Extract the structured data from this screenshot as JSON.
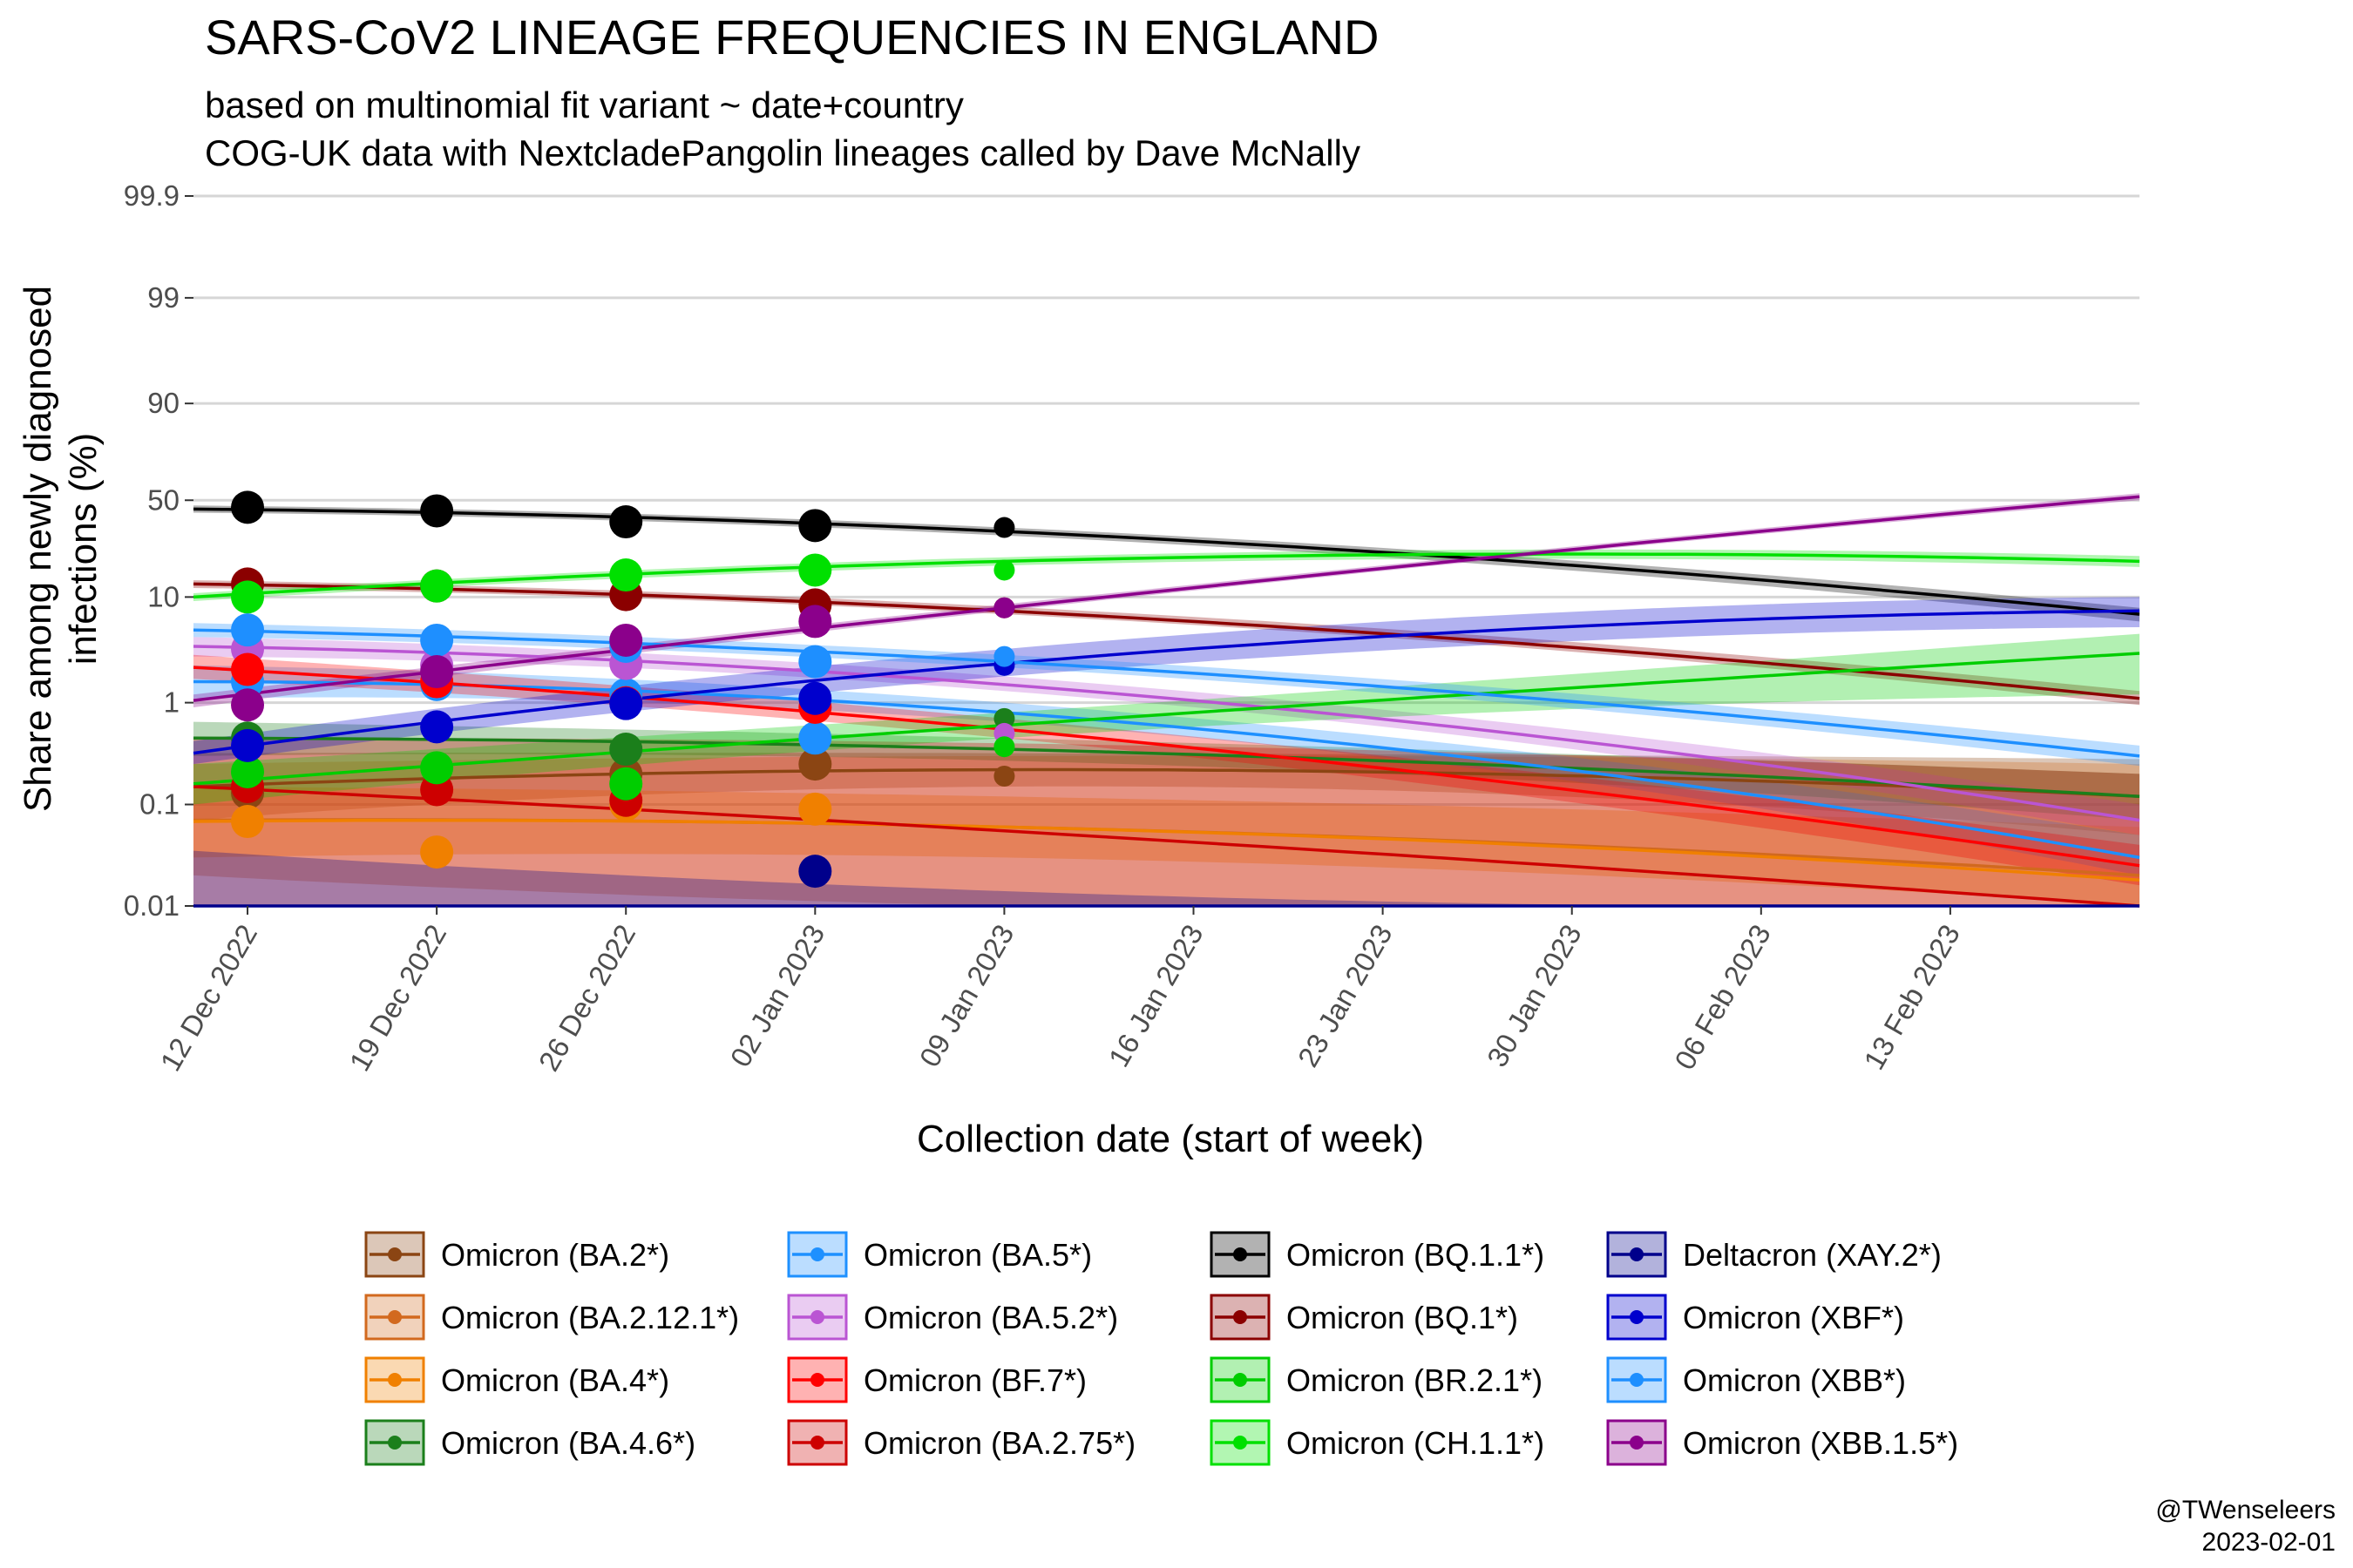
{
  "chart_data": {
    "type": "line",
    "title": "SARS-CoV2 LINEAGE FREQUENCIES IN ENGLAND",
    "subtitle_lines": [
      "based on multinomial fit variant ~ date+country",
      "COG-UK data with NextcladePangolin lineages called by Dave McNally"
    ],
    "xlabel": "Collection date (start of week)",
    "ylabel_lines": [
      "Share among newly diagnosed",
      "infections (%)"
    ],
    "y_scale": "logit",
    "y_ticks": [
      0.01,
      0.1,
      1,
      10,
      50,
      90,
      99,
      99.9
    ],
    "y_tick_labels": [
      "0.01",
      "0.1",
      "1",
      "10",
      "50",
      "90",
      "99",
      "99.9"
    ],
    "x_range": [
      "2022-12-10",
      "2023-02-20"
    ],
    "x_ticks": [
      "2022-12-12",
      "2022-12-19",
      "2022-12-26",
      "2023-01-02",
      "2023-01-09",
      "2023-01-16",
      "2023-01-23",
      "2023-01-30",
      "2023-02-06",
      "2023-02-13"
    ],
    "x_tick_labels": [
      "12 Dec 2022",
      "19 Dec 2022",
      "26 Dec 2022",
      "02 Jan 2023",
      "09 Jan 2023",
      "16 Jan 2023",
      "23 Jan 2023",
      "30 Jan 2023",
      "06 Feb 2023",
      "13 Feb 2023"
    ],
    "grid": true,
    "legend_position": "bottom",
    "series": [
      {
        "name": "Omicron (BA.2*)",
        "color": "#8B4513",
        "fit": [
          [
            "2022-12-10",
            0.15
          ],
          [
            "2023-01-09",
            0.22
          ],
          [
            "2023-02-20",
            0.12
          ]
        ],
        "band": [
          [
            "2022-12-10",
            0.07,
            0.32
          ],
          [
            "2023-01-09",
            0.15,
            0.32
          ],
          [
            "2023-02-20",
            0.05,
            0.28
          ]
        ],
        "points": [
          [
            "2022-12-12",
            0.13
          ],
          [
            "2022-12-26",
            0.2
          ],
          [
            "2023-01-02",
            0.25
          ],
          [
            "2023-01-09",
            0.19
          ]
        ]
      },
      {
        "name": "Omicron (BA.2.12.1*)",
        "color": "#D2691E",
        "fit": [
          [
            "2022-12-10",
            0.07
          ],
          [
            "2023-01-09",
            0.06
          ],
          [
            "2023-02-20",
            0.02
          ]
        ],
        "band": [
          [
            "2022-12-10",
            0.02,
            0.25
          ],
          [
            "2023-01-09",
            0.01,
            0.3
          ],
          [
            "2023-02-20",
            0.001,
            0.25
          ]
        ],
        "points": []
      },
      {
        "name": "Omicron (BA.4*)",
        "color": "#F08000",
        "fit": [
          [
            "2022-12-10",
            0.068
          ],
          [
            "2023-01-09",
            0.06
          ],
          [
            "2023-02-20",
            0.018
          ]
        ],
        "band": [
          [
            "2022-12-10",
            0.03,
            0.15
          ],
          [
            "2023-01-09",
            0.03,
            0.12
          ],
          [
            "2023-02-20",
            0.006,
            0.06
          ]
        ],
        "points": [
          [
            "2022-12-12",
            0.068
          ],
          [
            "2022-12-19",
            0.034
          ],
          [
            "2022-12-26",
            0.1
          ],
          [
            "2023-01-02",
            0.09
          ]
        ]
      },
      {
        "name": "Omicron (BA.4.6*)",
        "color": "#1B7F1B",
        "fit": [
          [
            "2022-12-10",
            0.45
          ],
          [
            "2023-01-09",
            0.35
          ],
          [
            "2023-02-20",
            0.12
          ]
        ],
        "band": [
          [
            "2022-12-10",
            0.3,
            0.65
          ],
          [
            "2023-01-09",
            0.27,
            0.45
          ],
          [
            "2023-02-20",
            0.07,
            0.2
          ]
        ],
        "points": [
          [
            "2022-12-12",
            0.45
          ],
          [
            "2022-12-26",
            0.35
          ],
          [
            "2023-01-09",
            0.7
          ]
        ]
      },
      {
        "name": "Omicron (BA.5*)",
        "color": "#1E90FF",
        "fit": [
          [
            "2022-12-10",
            1.6
          ],
          [
            "2023-01-09",
            0.8
          ],
          [
            "2023-02-20",
            0.03
          ]
        ],
        "band": [
          [
            "2022-12-10",
            1.1,
            2.3
          ],
          [
            "2023-01-09",
            0.65,
            1.0
          ],
          [
            "2023-02-20",
            0.02,
            0.05
          ]
        ],
        "points": [
          [
            "2022-12-12",
            1.6
          ],
          [
            "2022-12-19",
            1.5
          ],
          [
            "2022-12-26",
            1.2
          ],
          [
            "2023-01-02",
            0.45
          ]
        ]
      },
      {
        "name": "Omicron (BA.5.2*)",
        "color": "#BA55D3",
        "fit": [
          [
            "2022-12-10",
            3.5
          ],
          [
            "2023-01-09",
            1.5
          ],
          [
            "2023-02-20",
            0.07
          ]
        ],
        "band": [
          [
            "2022-12-10",
            2.8,
            4.3
          ],
          [
            "2023-01-09",
            1.3,
            1.8
          ],
          [
            "2023-02-20",
            0.05,
            0.1
          ]
        ],
        "points": [
          [
            "2022-12-12",
            3.3
          ],
          [
            "2022-12-19",
            2.3
          ],
          [
            "2022-12-26",
            2.4
          ],
          [
            "2023-01-09",
            0.5
          ]
        ]
      },
      {
        "name": "Omicron (BF.7*)",
        "color": "#FF0000",
        "fit": [
          [
            "2022-12-10",
            2.2
          ],
          [
            "2023-01-09",
            0.55
          ],
          [
            "2023-02-20",
            0.025
          ]
        ],
        "band": [
          [
            "2022-12-10",
            1.7,
            2.9
          ],
          [
            "2023-01-09",
            0.45,
            0.7
          ],
          [
            "2023-02-20",
            0.016,
            0.04
          ]
        ],
        "points": [
          [
            "2022-12-12",
            2.1
          ],
          [
            "2022-12-19",
            1.6
          ],
          [
            "2022-12-26",
            1.0
          ],
          [
            "2023-01-02",
            0.9
          ]
        ]
      },
      {
        "name": "Omicron (BA.2.75*)",
        "color": "#CD0000",
        "fit": [
          [
            "2022-12-10",
            0.15
          ],
          [
            "2023-01-09",
            0.055
          ],
          [
            "2023-02-20",
            0.005
          ]
        ],
        "band": [
          [
            "2022-12-10",
            0.001,
            0.45
          ],
          [
            "2023-01-09",
            0.001,
            0.4
          ],
          [
            "2023-02-20",
            0.001,
            0.2
          ]
        ],
        "points": [
          [
            "2022-12-12",
            0.15
          ],
          [
            "2022-12-19",
            0.14
          ],
          [
            "2022-12-26",
            0.11
          ]
        ]
      },
      {
        "name": "Omicron (BQ.1.1*)",
        "color": "#000000",
        "fit": [
          [
            "2022-12-10",
            45
          ],
          [
            "2023-01-09",
            33
          ],
          [
            "2023-02-20",
            7
          ]
        ],
        "band": [
          [
            "2022-12-10",
            43,
            47
          ],
          [
            "2023-01-09",
            31,
            35
          ],
          [
            "2023-02-20",
            6,
            8
          ]
        ],
        "points": [
          [
            "2022-12-12",
            46
          ],
          [
            "2022-12-19",
            44
          ],
          [
            "2022-12-26",
            38
          ],
          [
            "2023-01-02",
            36
          ],
          [
            "2023-01-09",
            35
          ]
        ]
      },
      {
        "name": "Omicron (BQ.1*)",
        "color": "#8B0000",
        "fit": [
          [
            "2022-12-10",
            13
          ],
          [
            "2023-01-09",
            7.5
          ],
          [
            "2023-02-20",
            1.1
          ]
        ],
        "band": [
          [
            "2022-12-10",
            12,
            14
          ],
          [
            "2023-01-09",
            7,
            8.2
          ],
          [
            "2023-02-20",
            0.95,
            1.3
          ]
        ],
        "points": [
          [
            "2022-12-12",
            13
          ],
          [
            "2022-12-19",
            12.5
          ],
          [
            "2022-12-26",
            10.5
          ],
          [
            "2023-01-02",
            8.5
          ],
          [
            "2023-01-09",
            8
          ]
        ]
      },
      {
        "name": "Omicron (BR.2.1*)",
        "color": "#00CD00",
        "fit": [
          [
            "2022-12-10",
            0.16
          ],
          [
            "2023-01-09",
            0.6
          ],
          [
            "2023-02-20",
            3
          ]
        ],
        "band": [
          [
            "2022-12-10",
            0.1,
            0.25
          ],
          [
            "2023-01-09",
            0.45,
            0.8
          ],
          [
            "2023-02-20",
            1.2,
            4.6
          ]
        ],
        "points": [
          [
            "2022-12-12",
            0.21
          ],
          [
            "2022-12-19",
            0.23
          ],
          [
            "2022-12-26",
            0.16
          ],
          [
            "2023-01-09",
            0.37
          ]
        ]
      },
      {
        "name": "Omicron (CH.1.1*)",
        "color": "#00E000",
        "fit": [
          [
            "2022-12-10",
            10
          ],
          [
            "2023-01-09",
            20
          ],
          [
            "2023-02-20",
            20
          ]
        ],
        "band": [
          [
            "2022-12-10",
            9.2,
            10.8
          ],
          [
            "2023-01-09",
            18.5,
            21.5
          ],
          [
            "2023-02-20",
            18,
            22
          ]
        ],
        "points": [
          [
            "2022-12-12",
            10
          ],
          [
            "2022-12-19",
            12.5
          ],
          [
            "2022-12-26",
            15.5
          ],
          [
            "2023-01-02",
            17
          ],
          [
            "2023-01-09",
            17
          ]
        ]
      },
      {
        "name": "Deltacron (XAY.2*)",
        "color": "#00008B",
        "fit": [
          [
            "2022-12-10",
            0.003
          ],
          [
            "2023-01-09",
            0.003
          ],
          [
            "2023-02-20",
            0.002
          ]
        ],
        "band": [
          [
            "2022-12-10",
            0.001,
            0.035
          ],
          [
            "2023-01-09",
            0.001,
            0.014
          ],
          [
            "2023-02-20",
            0.001,
            0.005
          ]
        ],
        "points": [
          [
            "2023-01-02",
            0.022
          ]
        ]
      },
      {
        "name": "Omicron (XBF*)",
        "color": "#0000CD",
        "fit": [
          [
            "2022-12-10",
            0.32
          ],
          [
            "2023-01-09",
            2.4
          ],
          [
            "2023-02-20",
            7.5
          ]
        ],
        "band": [
          [
            "2022-12-10",
            0.25,
            0.42
          ],
          [
            "2023-01-09",
            1.8,
            3.3
          ],
          [
            "2023-02-20",
            5.3,
            10
          ]
        ],
        "points": [
          [
            "2022-12-12",
            0.38
          ],
          [
            "2022-12-19",
            0.58
          ],
          [
            "2022-12-26",
            0.98
          ],
          [
            "2023-01-02",
            1.1
          ],
          [
            "2023-01-09",
            2.3
          ]
        ]
      },
      {
        "name": "Omicron (XBB*)",
        "color": "#1E8FFF",
        "fit": [
          [
            "2022-12-10",
            5
          ],
          [
            "2023-01-09",
            2.5
          ],
          [
            "2023-02-20",
            0.3
          ]
        ],
        "band": [
          [
            "2022-12-10",
            4.3,
            5.8
          ],
          [
            "2023-01-09",
            2.2,
            2.9
          ],
          [
            "2023-02-20",
            0.24,
            0.38
          ]
        ],
        "points": [
          [
            "2022-12-12",
            5
          ],
          [
            "2022-12-19",
            4
          ],
          [
            "2022-12-26",
            3.5
          ],
          [
            "2023-01-02",
            2.5
          ],
          [
            "2023-01-09",
            2.8
          ]
        ]
      },
      {
        "name": "Omicron (XBB.1.5*)",
        "color": "#8B008B",
        "fit": [
          [
            "2022-12-10",
            1.05
          ],
          [
            "2023-01-09",
            8
          ],
          [
            "2023-02-20",
            52
          ]
        ],
        "band": [
          [
            "2022-12-10",
            0.9,
            1.2
          ],
          [
            "2023-01-09",
            7.5,
            8.6
          ],
          [
            "2023-02-20",
            50,
            54
          ]
        ],
        "points": [
          [
            "2022-12-12",
            0.95
          ],
          [
            "2022-12-19",
            2
          ],
          [
            "2022-12-26",
            4
          ],
          [
            "2023-01-02",
            6
          ],
          [
            "2023-01-09",
            8
          ]
        ]
      }
    ]
  },
  "caption": {
    "handle": "@TWenseleers",
    "date": "2023-02-01"
  }
}
